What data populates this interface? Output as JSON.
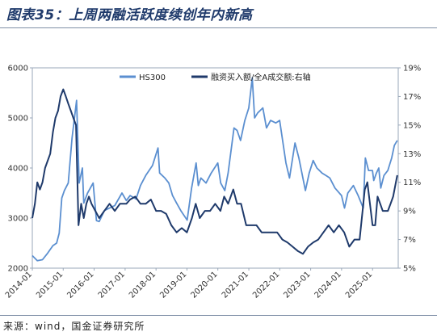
{
  "figure_title": "图表35：上周两融活跃度续创年内新高",
  "source_note": "来源：wind，国金证券研究所",
  "chart_data": {
    "type": "line",
    "title": "图表35：上周两融活跃度续创年内新高",
    "xlabel": "",
    "x_range": [
      "2014-01-01",
      "2025-10-31"
    ],
    "x_tick_labels": [
      "2014-01",
      "2015-01",
      "2016-01",
      "2017-01",
      "2018-01",
      "2019-01",
      "2020-01",
      "2021-01",
      "2022-01",
      "2023-01",
      "2024-01",
      "2025-01"
    ],
    "left_axis": {
      "ylim": [
        2000,
        6000
      ],
      "ticks": [
        2000,
        3000,
        4000,
        5000,
        6000
      ]
    },
    "right_axis": {
      "ylim": [
        5,
        19
      ],
      "ticks": [
        5,
        7,
        9,
        11,
        13,
        15,
        17,
        19
      ],
      "unit": "%"
    },
    "grid": false,
    "legend_position": "top",
    "series": [
      {
        "name": "HS300",
        "axis": "left",
        "color": "#5b8fd0",
        "points": [
          [
            "2014-01-01",
            2250
          ],
          [
            "2014-03-01",
            2150
          ],
          [
            "2014-05-01",
            2170
          ],
          [
            "2014-07-01",
            2300
          ],
          [
            "2014-09-01",
            2450
          ],
          [
            "2014-10-15",
            2500
          ],
          [
            "2014-11-15",
            2700
          ],
          [
            "2014-12-15",
            3400
          ],
          [
            "2015-01-15",
            3550
          ],
          [
            "2015-03-01",
            3700
          ],
          [
            "2015-04-15",
            4600
          ],
          [
            "2015-06-08",
            5350
          ],
          [
            "2015-07-08",
            3700
          ],
          [
            "2015-08-15",
            4000
          ],
          [
            "2015-09-01",
            3300
          ],
          [
            "2015-10-15",
            3500
          ],
          [
            "2015-12-20",
            3700
          ],
          [
            "2016-01-28",
            2950
          ],
          [
            "2016-03-01",
            2930
          ],
          [
            "2016-05-01",
            3150
          ],
          [
            "2016-07-01",
            3200
          ],
          [
            "2016-09-01",
            3250
          ],
          [
            "2016-11-25",
            3500
          ],
          [
            "2017-01-15",
            3350
          ],
          [
            "2017-03-01",
            3450
          ],
          [
            "2017-05-10",
            3380
          ],
          [
            "2017-07-01",
            3650
          ],
          [
            "2017-09-01",
            3850
          ],
          [
            "2017-11-20",
            4050
          ],
          [
            "2018-01-24",
            4400
          ],
          [
            "2018-02-12",
            3900
          ],
          [
            "2018-04-15",
            3800
          ],
          [
            "2018-06-01",
            3700
          ],
          [
            "2018-07-15",
            3450
          ],
          [
            "2018-09-01",
            3300
          ],
          [
            "2018-10-20",
            3150
          ],
          [
            "2019-01-04",
            2960
          ],
          [
            "2019-02-25",
            3600
          ],
          [
            "2019-04-19",
            4100
          ],
          [
            "2019-05-15",
            3650
          ],
          [
            "2019-06-15",
            3800
          ],
          [
            "2019-08-15",
            3700
          ],
          [
            "2019-10-15",
            3900
          ],
          [
            "2019-12-31",
            4100
          ],
          [
            "2020-02-03",
            3700
          ],
          [
            "2020-03-23",
            3550
          ],
          [
            "2020-05-01",
            3900
          ],
          [
            "2020-07-10",
            4800
          ],
          [
            "2020-08-15",
            4750
          ],
          [
            "2020-09-25",
            4550
          ],
          [
            "2020-11-15",
            4950
          ],
          [
            "2020-12-31",
            5200
          ],
          [
            "2021-02-10",
            5800
          ],
          [
            "2021-03-10",
            5000
          ],
          [
            "2021-04-15",
            5100
          ],
          [
            "2021-06-15",
            5200
          ],
          [
            "2021-07-28",
            4800
          ],
          [
            "2021-09-15",
            4950
          ],
          [
            "2021-11-15",
            4900
          ],
          [
            "2021-12-31",
            4950
          ],
          [
            "2022-03-15",
            4100
          ],
          [
            "2022-04-26",
            3800
          ],
          [
            "2022-06-30",
            4500
          ],
          [
            "2022-08-15",
            4200
          ],
          [
            "2022-10-31",
            3550
          ],
          [
            "2022-12-15",
            3900
          ],
          [
            "2023-01-31",
            4150
          ],
          [
            "2023-03-15",
            4000
          ],
          [
            "2023-05-15",
            3900
          ],
          [
            "2023-06-30",
            3850
          ],
          [
            "2023-08-15",
            3800
          ],
          [
            "2023-10-15",
            3600
          ],
          [
            "2023-12-31",
            3450
          ],
          [
            "2024-02-05",
            3200
          ],
          [
            "2024-03-15",
            3500
          ],
          [
            "2024-05-20",
            3650
          ],
          [
            "2024-07-15",
            3450
          ],
          [
            "2024-09-13",
            3200
          ],
          [
            "2024-10-08",
            4200
          ],
          [
            "2024-11-15",
            3950
          ],
          [
            "2024-12-31",
            3950
          ],
          [
            "2025-01-15",
            3750
          ],
          [
            "2025-02-15",
            3900
          ],
          [
            "2025-03-15",
            4000
          ],
          [
            "2025-04-08",
            3600
          ],
          [
            "2025-05-15",
            3850
          ],
          [
            "2025-06-30",
            3950
          ],
          [
            "2025-08-15",
            4200
          ],
          [
            "2025-09-15",
            4450
          ],
          [
            "2025-10-20",
            4550
          ]
        ]
      },
      {
        "name": "融资买入额/全A成交额:右轴",
        "axis": "right",
        "color": "#1f3a6b",
        "points": [
          [
            "2014-01-01",
            8.5
          ],
          [
            "2014-02-01",
            9.5
          ],
          [
            "2014-03-01",
            11.0
          ],
          [
            "2014-04-01",
            10.5
          ],
          [
            "2014-05-01",
            11.0
          ],
          [
            "2014-06-01",
            12.0
          ],
          [
            "2014-07-01",
            12.5
          ],
          [
            "2014-08-01",
            13.0
          ],
          [
            "2014-09-01",
            14.5
          ],
          [
            "2014-10-01",
            15.5
          ],
          [
            "2014-11-01",
            16.0
          ],
          [
            "2014-12-01",
            17.0
          ],
          [
            "2015-01-01",
            17.5
          ],
          [
            "2015-02-01",
            17.0
          ],
          [
            "2015-03-01",
            16.5
          ],
          [
            "2015-04-01",
            16.0
          ],
          [
            "2015-05-01",
            15.5
          ],
          [
            "2015-06-01",
            15.0
          ],
          [
            "2015-07-01",
            8.0
          ],
          [
            "2015-08-01",
            9.5
          ],
          [
            "2015-09-01",
            8.5
          ],
          [
            "2015-10-01",
            9.5
          ],
          [
            "2015-11-01",
            10.0
          ],
          [
            "2015-12-01",
            9.5
          ],
          [
            "2016-01-15",
            9.0
          ],
          [
            "2016-03-01",
            8.5
          ],
          [
            "2016-05-01",
            9.0
          ],
          [
            "2016-07-01",
            9.5
          ],
          [
            "2016-09-01",
            9.0
          ],
          [
            "2016-11-01",
            9.5
          ],
          [
            "2017-01-15",
            9.5
          ],
          [
            "2017-03-01",
            9.8
          ],
          [
            "2017-05-01",
            10.0
          ],
          [
            "2017-07-01",
            9.5
          ],
          [
            "2017-09-01",
            9.5
          ],
          [
            "2017-11-01",
            9.8
          ],
          [
            "2018-01-01",
            9.0
          ],
          [
            "2018-03-01",
            9.0
          ],
          [
            "2018-05-01",
            8.8
          ],
          [
            "2018-07-01",
            8.0
          ],
          [
            "2018-09-01",
            7.5
          ],
          [
            "2018-11-01",
            7.8
          ],
          [
            "2019-01-01",
            7.5
          ],
          [
            "2019-03-01",
            8.5
          ],
          [
            "2019-04-15",
            9.5
          ],
          [
            "2019-06-01",
            8.5
          ],
          [
            "2019-08-01",
            9.0
          ],
          [
            "2019-10-01",
            9.0
          ],
          [
            "2019-12-01",
            9.5
          ],
          [
            "2020-02-01",
            9.0
          ],
          [
            "2020-03-15",
            10.0
          ],
          [
            "2020-05-01",
            9.5
          ],
          [
            "2020-07-01",
            10.5
          ],
          [
            "2020-08-15",
            9.5
          ],
          [
            "2020-10-01",
            9.5
          ],
          [
            "2020-12-01",
            8.0
          ],
          [
            "2021-02-01",
            8.0
          ],
          [
            "2021-04-01",
            8.0
          ],
          [
            "2021-06-01",
            7.5
          ],
          [
            "2021-08-01",
            7.5
          ],
          [
            "2021-10-01",
            7.5
          ],
          [
            "2021-12-01",
            7.5
          ],
          [
            "2022-02-01",
            7.0
          ],
          [
            "2022-04-01",
            6.8
          ],
          [
            "2022-06-01",
            6.5
          ],
          [
            "2022-08-01",
            6.2
          ],
          [
            "2022-10-01",
            6.0
          ],
          [
            "2022-12-01",
            6.5
          ],
          [
            "2023-02-01",
            6.8
          ],
          [
            "2023-04-01",
            7.0
          ],
          [
            "2023-06-01",
            7.5
          ],
          [
            "2023-08-01",
            8.0
          ],
          [
            "2023-10-01",
            7.5
          ],
          [
            "2023-12-01",
            8.0
          ],
          [
            "2024-02-01",
            7.5
          ],
          [
            "2024-04-01",
            6.5
          ],
          [
            "2024-06-01",
            7.0
          ],
          [
            "2024-08-01",
            7.0
          ],
          [
            "2024-10-01",
            10.5
          ],
          [
            "2024-11-01",
            11.0
          ],
          [
            "2024-12-01",
            9.5
          ],
          [
            "2025-01-01",
            8.0
          ],
          [
            "2025-02-01",
            8.0
          ],
          [
            "2025-03-01",
            10.0
          ],
          [
            "2025-04-01",
            9.5
          ],
          [
            "2025-05-01",
            9.0
          ],
          [
            "2025-06-01",
            9.0
          ],
          [
            "2025-07-01",
            9.0
          ],
          [
            "2025-08-01",
            9.5
          ],
          [
            "2025-09-01",
            10.0
          ],
          [
            "2025-10-20",
            11.5
          ]
        ]
      }
    ]
  }
}
